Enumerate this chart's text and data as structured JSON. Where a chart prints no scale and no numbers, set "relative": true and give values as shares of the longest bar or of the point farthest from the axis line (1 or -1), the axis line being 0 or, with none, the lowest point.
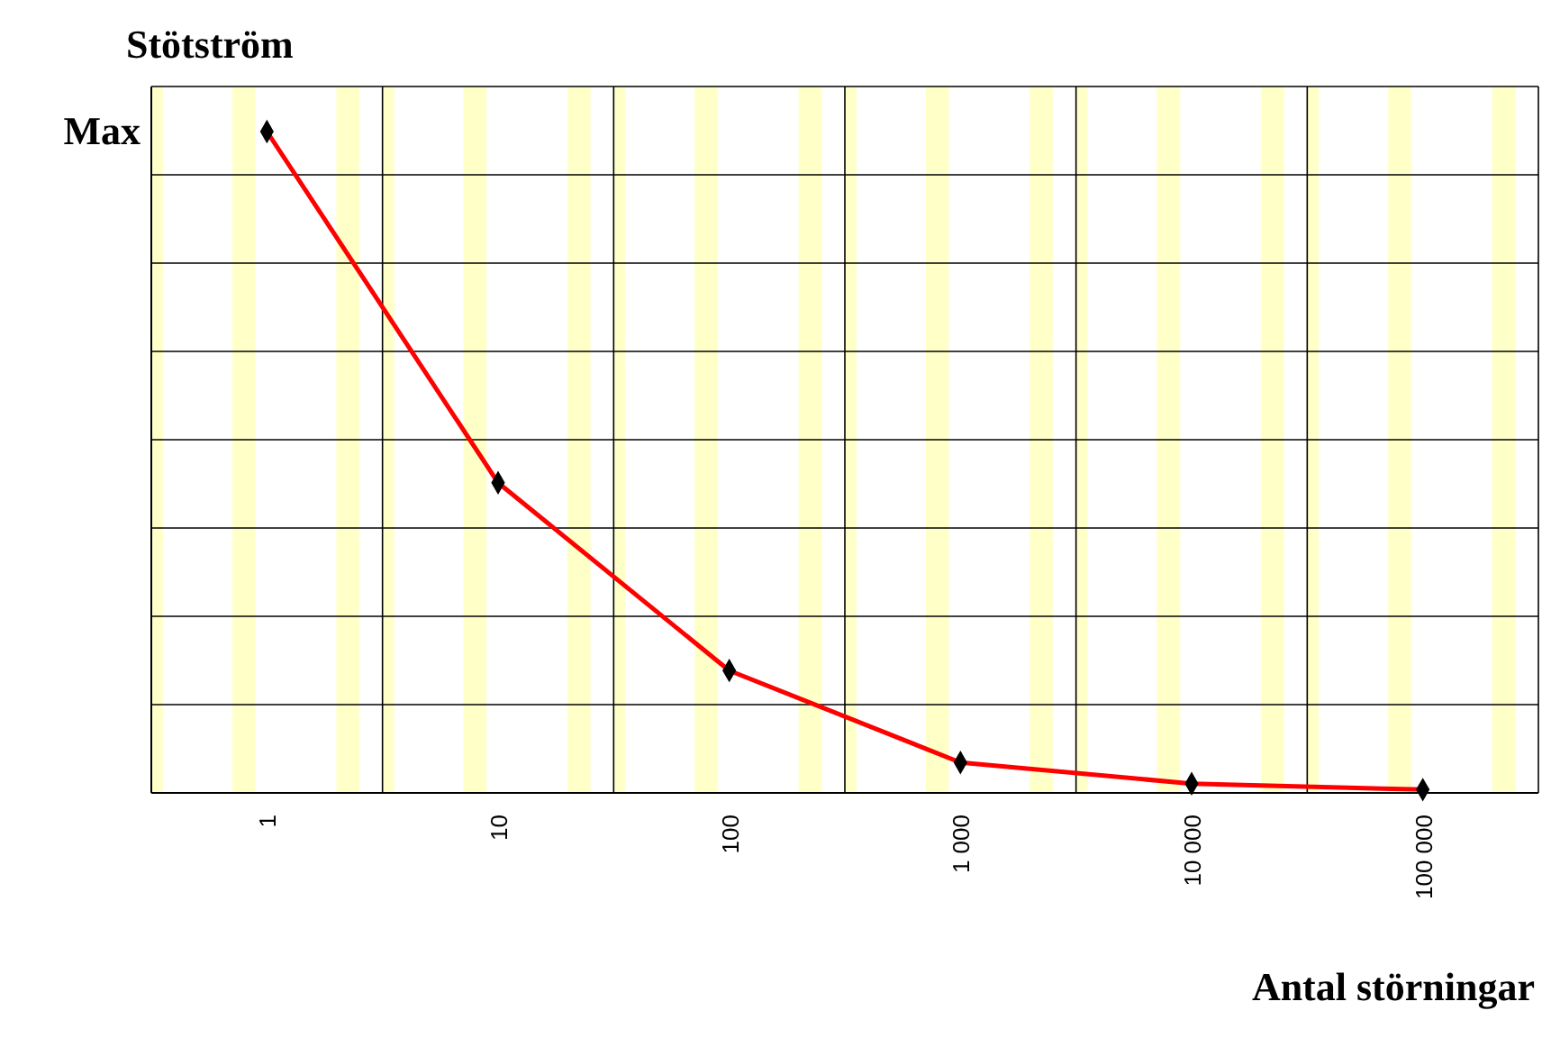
{
  "chart_data": {
    "type": "line",
    "ylabel": "Stötström",
    "xlabel": "Antal störningar",
    "annotations": [
      "Max"
    ],
    "categories": [
      "1",
      "10",
      "100",
      "1 000",
      "10 000",
      "100 000"
    ],
    "series": [
      {
        "color": "#ff0000",
        "values": [
          1,
          0.469,
          0.185,
          0.046,
          0.014,
          0.005
        ]
      }
    ],
    "relative": true,
    "grid": true,
    "marker": "diamond",
    "line_style": "solid"
  }
}
